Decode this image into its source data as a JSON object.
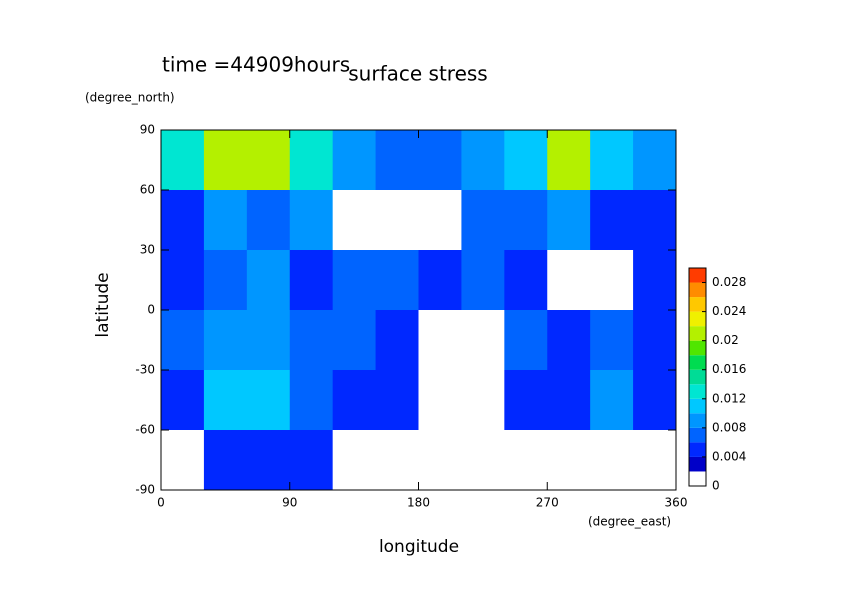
{
  "chart_data": {
    "type": "contour",
    "title": "surface stress",
    "subtitle": "time =44909hours",
    "xlabel": "longitude",
    "ylabel": "latitude",
    "xunit": "(degree_east)",
    "yunit": "(degree_north)",
    "xlim": [
      0,
      360
    ],
    "ylim": [
      -90,
      90
    ],
    "xticks": [
      0,
      90,
      180,
      270,
      360
    ],
    "yticks": [
      -90,
      -60,
      -30,
      0,
      30,
      60,
      90
    ],
    "x": [
      15,
      45,
      75,
      105,
      135,
      165,
      195,
      225,
      255,
      285,
      315,
      345
    ],
    "y": [
      75,
      45,
      15,
      -15,
      -45,
      -75
    ],
    "z": [
      [
        0.012,
        0.02,
        0.02,
        0.012,
        0.008,
        0.006,
        0.006,
        0.008,
        0.01,
        0.02,
        0.01,
        0.008
      ],
      [
        0.004,
        0.008,
        0.006,
        0.008,
        0,
        0,
        0,
        0.006,
        0.006,
        0.008,
        0.004,
        0.004
      ],
      [
        0.004,
        0.006,
        0.008,
        0.004,
        0.006,
        0.006,
        0.004,
        0.006,
        0.004,
        0,
        0,
        0.004
      ],
      [
        0.006,
        0.008,
        0.008,
        0.006,
        0.006,
        0.004,
        0,
        0,
        0.006,
        0.004,
        0.006,
        0.004
      ],
      [
        0.004,
        0.01,
        0.01,
        0.006,
        0.004,
        0.004,
        0,
        0,
        0.004,
        0.004,
        0.008,
        0.004
      ],
      [
        0,
        0.004,
        0.004,
        0.004,
        0,
        0,
        0,
        0,
        0,
        0,
        0,
        0
      ]
    ],
    "colorbar": {
      "levels": [
        0,
        0.002,
        0.004,
        0.006,
        0.008,
        0.01,
        0.012,
        0.014,
        0.016,
        0.018,
        0.02,
        0.022,
        0.024,
        0.026,
        0.028,
        0.03
      ],
      "colors": [
        "#ffffff",
        "#0000c8",
        "#0028ff",
        "#0064ff",
        "#0096ff",
        "#00c8ff",
        "#00e6d2",
        "#00dc96",
        "#00dc50",
        "#50e600",
        "#b4f000",
        "#f0f000",
        "#ffc800",
        "#ff8c00",
        "#ff3c00"
      ],
      "ticks": [
        0,
        0.004,
        0.008,
        0.012,
        0.016,
        0.02,
        0.024,
        0.028
      ]
    }
  }
}
